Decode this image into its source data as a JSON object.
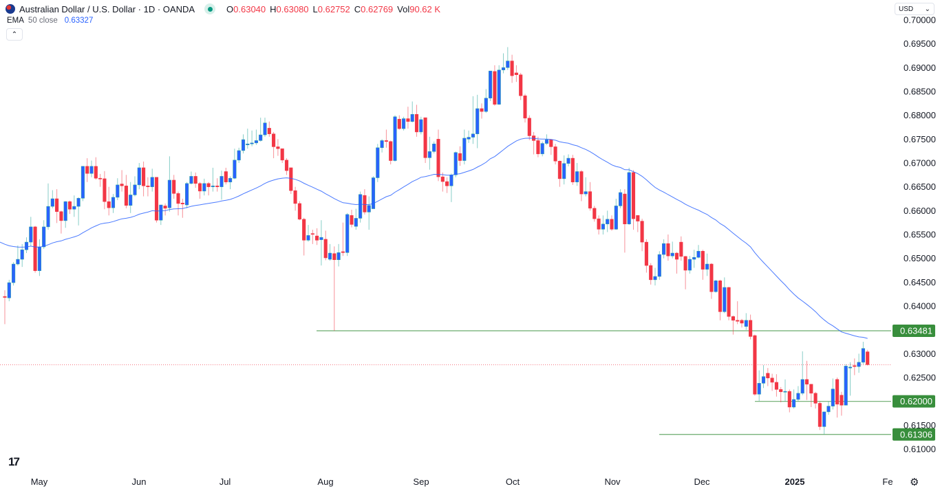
{
  "header": {
    "symbol_title": "Australian Dollar / U.S. Dollar · 1D · OANDA",
    "flag_icon": "au-us-flag-icon",
    "market_status_color": "#089981",
    "ohlc": [
      {
        "key": "O",
        "value": "0.63040"
      },
      {
        "key": "H",
        "value": "0.63080"
      },
      {
        "key": "L",
        "value": "0.62752"
      },
      {
        "key": "C",
        "value": "0.62769"
      },
      {
        "key": "Vol",
        "value": "90.62 K"
      }
    ],
    "indicator": {
      "name": "EMA",
      "params": "50 close",
      "value": "0.63327"
    },
    "collapse_icon": "chevron-up-icon"
  },
  "currency_selector": {
    "value": "USD"
  },
  "x_axis": {
    "labels": [
      {
        "text": "May",
        "bold": false
      },
      {
        "text": "Jun",
        "bold": false
      },
      {
        "text": "Jul",
        "bold": false
      },
      {
        "text": "Aug",
        "bold": false
      },
      {
        "text": "Sep",
        "bold": false
      },
      {
        "text": "Oct",
        "bold": false
      },
      {
        "text": "Nov",
        "bold": false
      },
      {
        "text": "Dec",
        "bold": false
      },
      {
        "text": "2025",
        "bold": true
      },
      {
        "text": "Fe",
        "bold": false
      }
    ]
  },
  "settings_icon": "gear-icon",
  "logo": "TV",
  "chart_data": {
    "type": "candlestick",
    "title": "Australian Dollar / U.S. Dollar · 1D · OANDA",
    "ylim": [
      0.608,
      0.7015
    ],
    "y_ticks": [
      "0.70000",
      "0.69500",
      "0.69000",
      "0.68500",
      "0.68000",
      "0.67500",
      "0.67000",
      "0.66500",
      "0.66000",
      "0.65500",
      "0.65000",
      "0.64500",
      "0.64000",
      "0.63000",
      "0.62500",
      "0.61500",
      "0.61000"
    ],
    "colors": {
      "up": "#2962ff",
      "up_wick": "#26a69a",
      "down": "#f23645",
      "ema": "#2962ff",
      "levels": "#388e3c",
      "last_price": "#f23645"
    },
    "ema_period": 50,
    "ema_last": 0.63327,
    "last_price": 0.62769,
    "horizontal_levels": [
      {
        "label": "0.63481",
        "value": 0.63481
      },
      {
        "label": "0.62000",
        "value": 0.62
      },
      {
        "label": "0.61306",
        "value": 0.61306
      }
    ],
    "candles_ohlc": [
      [
        0.642,
        0.6433,
        0.6362,
        0.6418
      ],
      [
        0.6417,
        0.6455,
        0.641,
        0.6449
      ],
      [
        0.6449,
        0.6492,
        0.6443,
        0.6488
      ],
      [
        0.6488,
        0.6527,
        0.6485,
        0.6498
      ],
      [
        0.6498,
        0.653,
        0.6482,
        0.6518
      ],
      [
        0.6518,
        0.6544,
        0.6511,
        0.6534
      ],
      [
        0.6534,
        0.6587,
        0.6526,
        0.6566
      ],
      [
        0.6566,
        0.6568,
        0.647,
        0.6474
      ],
      [
        0.6474,
        0.654,
        0.6463,
        0.6524
      ],
      [
        0.6524,
        0.658,
        0.652,
        0.6566
      ],
      [
        0.6566,
        0.6657,
        0.656,
        0.6609
      ],
      [
        0.6609,
        0.6643,
        0.6605,
        0.6625
      ],
      [
        0.6625,
        0.6645,
        0.6574,
        0.6598
      ],
      [
        0.6598,
        0.66,
        0.6552,
        0.6579
      ],
      [
        0.6579,
        0.662,
        0.6564,
        0.6619
      ],
      [
        0.6619,
        0.6621,
        0.6593,
        0.6603
      ],
      [
        0.6603,
        0.6632,
        0.6587,
        0.6609
      ],
      [
        0.6609,
        0.6628,
        0.6569,
        0.6626
      ],
      [
        0.6626,
        0.6693,
        0.662,
        0.6693
      ],
      [
        0.6693,
        0.671,
        0.666,
        0.6678
      ],
      [
        0.6678,
        0.6705,
        0.667,
        0.6693
      ],
      [
        0.6693,
        0.6712,
        0.6665,
        0.6668
      ],
      [
        0.6668,
        0.6677,
        0.665,
        0.6667
      ],
      [
        0.6667,
        0.6683,
        0.6603,
        0.6619
      ],
      [
        0.6619,
        0.665,
        0.659,
        0.6606
      ],
      [
        0.6606,
        0.6635,
        0.6595,
        0.6628
      ],
      [
        0.6628,
        0.6668,
        0.6622,
        0.6654
      ],
      [
        0.6656,
        0.6685,
        0.664,
        0.6652
      ],
      [
        0.6652,
        0.6675,
        0.6605,
        0.6611
      ],
      [
        0.6611,
        0.666,
        0.6595,
        0.6633
      ],
      [
        0.6633,
        0.6672,
        0.663,
        0.6654
      ],
      [
        0.6654,
        0.67,
        0.6645,
        0.669
      ],
      [
        0.669,
        0.6703,
        0.663,
        0.6652
      ],
      [
        0.6652,
        0.667,
        0.663,
        0.665
      ],
      [
        0.665,
        0.6688,
        0.664,
        0.667
      ],
      [
        0.667,
        0.667,
        0.6575,
        0.658
      ],
      [
        0.658,
        0.6612,
        0.657,
        0.6612
      ],
      [
        0.661,
        0.6615,
        0.659,
        0.6605
      ],
      [
        0.6606,
        0.6714,
        0.6598,
        0.6664
      ],
      [
        0.6664,
        0.6675,
        0.6625,
        0.6636
      ],
      [
        0.6636,
        0.664,
        0.659,
        0.6615
      ],
      [
        0.6616,
        0.6625,
        0.6585,
        0.6614
      ],
      [
        0.6612,
        0.666,
        0.6605,
        0.6657
      ],
      [
        0.6657,
        0.6682,
        0.6655,
        0.6672
      ],
      [
        0.6672,
        0.668,
        0.6648,
        0.6657
      ],
      [
        0.6657,
        0.666,
        0.6625,
        0.6641
      ],
      [
        0.6641,
        0.6667,
        0.6632,
        0.6657
      ],
      [
        0.6657,
        0.666,
        0.6632,
        0.665
      ],
      [
        0.665,
        0.669,
        0.664,
        0.6652
      ],
      [
        0.6652,
        0.6668,
        0.664,
        0.665
      ],
      [
        0.665,
        0.6684,
        0.6623,
        0.6672
      ],
      [
        0.6682,
        0.669,
        0.6655,
        0.666
      ],
      [
        0.666,
        0.6672,
        0.6645,
        0.6668
      ],
      [
        0.6668,
        0.673,
        0.6666,
        0.6706
      ],
      [
        0.6706,
        0.6732,
        0.67,
        0.6726
      ],
      [
        0.6726,
        0.676,
        0.672,
        0.6749
      ],
      [
        0.6738,
        0.6772,
        0.673,
        0.674
      ],
      [
        0.674,
        0.6768,
        0.6735,
        0.6742
      ],
      [
        0.6742,
        0.677,
        0.6738,
        0.6747
      ],
      [
        0.6747,
        0.6795,
        0.6745,
        0.6759
      ],
      [
        0.6759,
        0.6795,
        0.6755,
        0.6784
      ],
      [
        0.6773,
        0.6787,
        0.6755,
        0.6761
      ],
      [
        0.6761,
        0.6765,
        0.671,
        0.6734
      ],
      [
        0.6734,
        0.675,
        0.6715,
        0.673
      ],
      [
        0.673,
        0.673,
        0.67,
        0.6706
      ],
      [
        0.6706,
        0.671,
        0.6675,
        0.6684
      ],
      [
        0.669,
        0.669,
        0.6635,
        0.6642
      ],
      [
        0.6642,
        0.665,
        0.66,
        0.6615
      ],
      [
        0.6615,
        0.662,
        0.658,
        0.6582
      ],
      [
        0.6582,
        0.6585,
        0.6506,
        0.6538
      ],
      [
        0.6538,
        0.657,
        0.6535,
        0.6548
      ],
      [
        0.6552,
        0.656,
        0.653,
        0.6551
      ],
      [
        0.6547,
        0.6563,
        0.6528,
        0.6538
      ],
      [
        0.6539,
        0.658,
        0.6485,
        0.6544
      ],
      [
        0.654,
        0.6558,
        0.6496,
        0.6501
      ],
      [
        0.6498,
        0.653,
        0.6495,
        0.6511
      ],
      [
        0.651,
        0.6525,
        0.6348,
        0.6497
      ],
      [
        0.6497,
        0.653,
        0.6483,
        0.6512
      ],
      [
        0.6514,
        0.6575,
        0.6505,
        0.6512
      ],
      [
        0.6512,
        0.6595,
        0.6505,
        0.6592
      ],
      [
        0.659,
        0.6602,
        0.6565,
        0.6571
      ],
      [
        0.6567,
        0.6604,
        0.656,
        0.6584
      ],
      [
        0.6584,
        0.664,
        0.6575,
        0.6634
      ],
      [
        0.6632,
        0.6645,
        0.6592,
        0.6597
      ],
      [
        0.6597,
        0.663,
        0.656,
        0.6611
      ],
      [
        0.6604,
        0.6672,
        0.6604,
        0.6669
      ],
      [
        0.6669,
        0.674,
        0.666,
        0.6732
      ],
      [
        0.6732,
        0.675,
        0.6722,
        0.6747
      ],
      [
        0.6747,
        0.677,
        0.6732,
        0.6745
      ],
      [
        0.6745,
        0.6747,
        0.6697,
        0.6705
      ],
      [
        0.6705,
        0.68,
        0.6703,
        0.6797
      ],
      [
        0.6792,
        0.68,
        0.677,
        0.6772
      ],
      [
        0.6772,
        0.6797,
        0.6768,
        0.6793
      ],
      [
        0.6793,
        0.6818,
        0.6772,
        0.6787
      ],
      [
        0.6787,
        0.6829,
        0.6785,
        0.6802
      ],
      [
        0.6802,
        0.6822,
        0.6755,
        0.6765
      ],
      [
        0.6765,
        0.6797,
        0.676,
        0.6791
      ],
      [
        0.6795,
        0.6795,
        0.67,
        0.6711
      ],
      [
        0.6711,
        0.6755,
        0.6686,
        0.6724
      ],
      [
        0.6724,
        0.6745,
        0.672,
        0.674
      ],
      [
        0.675,
        0.677,
        0.6662,
        0.6671
      ],
      [
        0.6671,
        0.668,
        0.664,
        0.6661
      ],
      [
        0.6661,
        0.667,
        0.6637,
        0.6652
      ],
      [
        0.6652,
        0.6678,
        0.6618,
        0.6675
      ],
      [
        0.6675,
        0.6724,
        0.667,
        0.6722
      ],
      [
        0.672,
        0.6735,
        0.6694,
        0.6705
      ],
      [
        0.6705,
        0.677,
        0.6697,
        0.6752
      ],
      [
        0.675,
        0.6768,
        0.6742,
        0.6754
      ],
      [
        0.6754,
        0.684,
        0.674,
        0.6761
      ],
      [
        0.6761,
        0.6843,
        0.6731,
        0.6814
      ],
      [
        0.6814,
        0.6825,
        0.6793,
        0.6808
      ],
      [
        0.6808,
        0.6855,
        0.6805,
        0.6836
      ],
      [
        0.6836,
        0.6893,
        0.683,
        0.6893
      ],
      [
        0.6892,
        0.6905,
        0.682,
        0.6823
      ],
      [
        0.6823,
        0.6905,
        0.6822,
        0.6895
      ],
      [
        0.6895,
        0.693,
        0.6888,
        0.69
      ],
      [
        0.69,
        0.6943,
        0.6895,
        0.6914
      ],
      [
        0.6914,
        0.6927,
        0.6868,
        0.6883
      ],
      [
        0.6889,
        0.6905,
        0.687,
        0.6885
      ],
      [
        0.6885,
        0.6889,
        0.6832,
        0.6841
      ],
      [
        0.6841,
        0.6845,
        0.6785,
        0.6794
      ],
      [
        0.6794,
        0.68,
        0.6748,
        0.6757
      ],
      [
        0.6757,
        0.6765,
        0.6718,
        0.6747
      ],
      [
        0.6747,
        0.6755,
        0.6712,
        0.6719
      ],
      [
        0.6719,
        0.6745,
        0.6714,
        0.6741
      ],
      [
        0.6741,
        0.676,
        0.6738,
        0.6749
      ],
      [
        0.6749,
        0.6749,
        0.6717,
        0.6734
      ],
      [
        0.6734,
        0.674,
        0.6697,
        0.6704
      ],
      [
        0.6704,
        0.6705,
        0.665,
        0.6667
      ],
      [
        0.6667,
        0.6716,
        0.6655,
        0.6699
      ],
      [
        0.6699,
        0.6718,
        0.6693,
        0.671
      ],
      [
        0.671,
        0.6717,
        0.6654,
        0.666
      ],
      [
        0.666,
        0.67,
        0.6652,
        0.6682
      ],
      [
        0.6682,
        0.6685,
        0.662,
        0.6635
      ],
      [
        0.6635,
        0.667,
        0.663,
        0.664
      ],
      [
        0.664,
        0.666,
        0.66,
        0.6605
      ],
      [
        0.6605,
        0.661,
        0.6577,
        0.6583
      ],
      [
        0.6583,
        0.659,
        0.655,
        0.6561
      ],
      [
        0.6561,
        0.659,
        0.655,
        0.6572
      ],
      [
        0.6572,
        0.66,
        0.6555,
        0.6582
      ],
      [
        0.6582,
        0.659,
        0.6558,
        0.6561
      ],
      [
        0.6561,
        0.6625,
        0.656,
        0.661
      ],
      [
        0.661,
        0.6645,
        0.6605,
        0.6638
      ],
      [
        0.6635,
        0.6645,
        0.6512,
        0.6572
      ],
      [
        0.6572,
        0.669,
        0.657,
        0.668
      ],
      [
        0.668,
        0.6685,
        0.656,
        0.6583
      ],
      [
        0.659,
        0.659,
        0.6555,
        0.6578
      ],
      [
        0.6578,
        0.6583,
        0.6515,
        0.6534
      ],
      [
        0.6534,
        0.654,
        0.647,
        0.6485
      ],
      [
        0.6485,
        0.649,
        0.6445,
        0.6455
      ],
      [
        0.6455,
        0.648,
        0.6443,
        0.6462
      ],
      [
        0.6462,
        0.6515,
        0.6455,
        0.6508
      ],
      [
        0.6508,
        0.654,
        0.65,
        0.6531
      ],
      [
        0.6531,
        0.655,
        0.6495,
        0.6505
      ],
      [
        0.6505,
        0.6535,
        0.65,
        0.6511
      ],
      [
        0.6511,
        0.6513,
        0.6468,
        0.6498
      ],
      [
        0.6534,
        0.6546,
        0.6495,
        0.6504
      ],
      [
        0.6504,
        0.6505,
        0.6435,
        0.6475
      ],
      [
        0.6475,
        0.6505,
        0.6468,
        0.6498
      ],
      [
        0.6498,
        0.6518,
        0.648,
        0.6502
      ],
      [
        0.6502,
        0.6528,
        0.65,
        0.6515
      ],
      [
        0.6515,
        0.6518,
        0.6455,
        0.6477
      ],
      [
        0.6477,
        0.651,
        0.6463,
        0.6488
      ],
      [
        0.6488,
        0.649,
        0.6415,
        0.643
      ],
      [
        0.643,
        0.6455,
        0.6428,
        0.6453
      ],
      [
        0.6453,
        0.6455,
        0.637,
        0.6388
      ],
      [
        0.6388,
        0.646,
        0.6385,
        0.6439
      ],
      [
        0.6439,
        0.644,
        0.637,
        0.6378
      ],
      [
        0.6378,
        0.638,
        0.634,
        0.637
      ],
      [
        0.637,
        0.641,
        0.6362,
        0.6368
      ],
      [
        0.637,
        0.6373,
        0.6355,
        0.6364
      ],
      [
        0.6357,
        0.6385,
        0.635,
        0.637
      ],
      [
        0.637,
        0.6382,
        0.633,
        0.6336
      ],
      [
        0.6338,
        0.634,
        0.6212,
        0.6215
      ],
      [
        0.6215,
        0.6265,
        0.6201,
        0.6238
      ],
      [
        0.6238,
        0.6276,
        0.6228,
        0.6252
      ],
      [
        0.6259,
        0.627,
        0.6232,
        0.6249
      ],
      [
        0.6249,
        0.6258,
        0.6222,
        0.624
      ],
      [
        0.624,
        0.6257,
        0.621,
        0.6225
      ],
      [
        0.6225,
        0.623,
        0.6198,
        0.622
      ],
      [
        0.622,
        0.6246,
        0.62,
        0.6221
      ],
      [
        0.6221,
        0.6225,
        0.6177,
        0.6188
      ],
      [
        0.6188,
        0.6225,
        0.6185,
        0.6204
      ],
      [
        0.6204,
        0.6232,
        0.62,
        0.6217
      ],
      [
        0.6217,
        0.6305,
        0.6213,
        0.6246
      ],
      [
        0.6246,
        0.6285,
        0.6203,
        0.6236
      ],
      [
        0.6236,
        0.6236,
        0.6188,
        0.6217
      ],
      [
        0.6217,
        0.622,
        0.6185,
        0.6196
      ],
      [
        0.6196,
        0.62,
        0.614,
        0.6147
      ],
      [
        0.6147,
        0.6178,
        0.6131,
        0.6178
      ],
      [
        0.6178,
        0.62,
        0.6172,
        0.619
      ],
      [
        0.619,
        0.6248,
        0.6183,
        0.6226
      ],
      [
        0.6246,
        0.625,
        0.6166,
        0.6194
      ],
      [
        0.6213,
        0.622,
        0.617,
        0.6192
      ],
      [
        0.6192,
        0.6278,
        0.6192,
        0.6274
      ],
      [
        0.627,
        0.6282,
        0.6212,
        0.6272
      ],
      [
        0.6275,
        0.629,
        0.6255,
        0.6273
      ],
      [
        0.6273,
        0.63,
        0.626,
        0.6282
      ],
      [
        0.6282,
        0.6325,
        0.6278,
        0.6311
      ],
      [
        0.6304,
        0.6308,
        0.62752,
        0.62769
      ]
    ]
  }
}
